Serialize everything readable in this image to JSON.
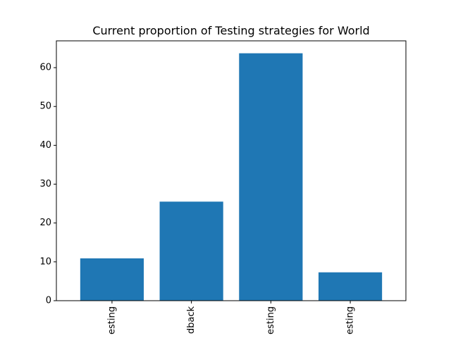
{
  "chart_data": {
    "type": "bar",
    "title": "Current proportion of Testing strategies for World",
    "xlabel": "",
    "ylabel": "",
    "categories": [
      "esting",
      "dback",
      "esting",
      "esting"
    ],
    "values": [
      10.9,
      25.5,
      63.7,
      7.3
    ],
    "ylim": [
      0,
      66.9
    ],
    "yticks": [
      0,
      10,
      20,
      30,
      40,
      50,
      60
    ],
    "bar_color": "#1f77b4",
    "grid": false,
    "legend": "none"
  }
}
